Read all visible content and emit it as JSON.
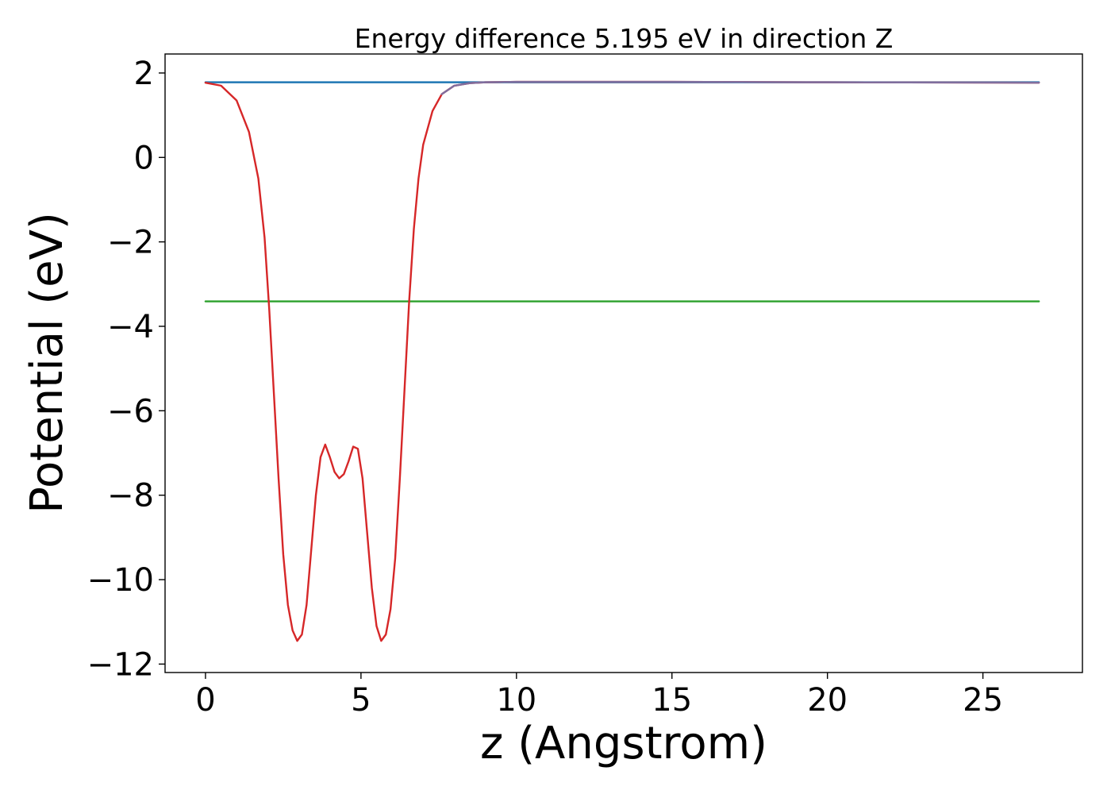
{
  "chart_data": {
    "type": "line",
    "title": "Energy difference 5.195 eV in direction Z",
    "xlabel": "z (Angstrom)",
    "ylabel": "Potential (eV)",
    "xlim": [
      -1.3,
      28.2
    ],
    "ylim": [
      -12.2,
      2.45
    ],
    "xticks": [
      0,
      5,
      10,
      15,
      20,
      25
    ],
    "yticks": [
      2,
      0,
      -2,
      -4,
      -6,
      -8,
      -10,
      -12
    ],
    "xtick_labels": [
      "0",
      "5",
      "10",
      "15",
      "20",
      "25"
    ],
    "ytick_labels": [
      "2",
      "0",
      "−2",
      "−4",
      "−6",
      "−8",
      "−10",
      "−12"
    ],
    "grid": false,
    "legend": "none",
    "series": [
      {
        "color": "#1f77b4",
        "x": [
          0,
          26.8
        ],
        "y": [
          1.78,
          1.78
        ]
      },
      {
        "color": "#2ca02c",
        "x": [
          0,
          26.8
        ],
        "y": [
          -3.41,
          -3.41
        ]
      },
      {
        "color": "#d62728",
        "x": [
          0,
          0.5,
          1.0,
          1.4,
          1.7,
          1.9,
          2.05,
          2.2,
          2.35,
          2.5,
          2.65,
          2.8,
          2.95,
          3.1,
          3.25,
          3.4,
          3.55,
          3.7,
          3.85,
          4.0,
          4.15,
          4.3,
          4.45,
          4.6,
          4.75,
          4.9,
          5.05,
          5.2,
          5.35,
          5.5,
          5.65,
          5.8,
          5.95,
          6.1,
          6.25,
          6.4,
          6.55,
          6.7,
          6.85,
          7.0,
          7.3,
          7.6,
          8.0,
          8.5,
          9.0,
          10.0,
          15.0,
          20.0,
          26.8
        ],
        "y": [
          1.77,
          1.7,
          1.35,
          0.6,
          -0.5,
          -1.9,
          -3.6,
          -5.6,
          -7.6,
          -9.4,
          -10.6,
          -11.2,
          -11.45,
          -11.3,
          -10.6,
          -9.3,
          -8.0,
          -7.1,
          -6.8,
          -7.1,
          -7.45,
          -7.6,
          -7.5,
          -7.2,
          -6.85,
          -6.9,
          -7.6,
          -8.9,
          -10.2,
          -11.1,
          -11.45,
          -11.3,
          -10.7,
          -9.5,
          -7.6,
          -5.5,
          -3.4,
          -1.7,
          -0.5,
          0.3,
          1.1,
          1.5,
          1.7,
          1.76,
          1.78,
          1.79,
          1.79,
          1.78,
          1.77
        ]
      },
      {
        "color": "#7f6e9e",
        "x": [
          7.6,
          8.0,
          8.5,
          9.0,
          10.0,
          15.0,
          20.0,
          26.8
        ],
        "y": [
          1.5,
          1.7,
          1.76,
          1.78,
          1.79,
          1.79,
          1.78,
          1.77
        ]
      }
    ]
  }
}
